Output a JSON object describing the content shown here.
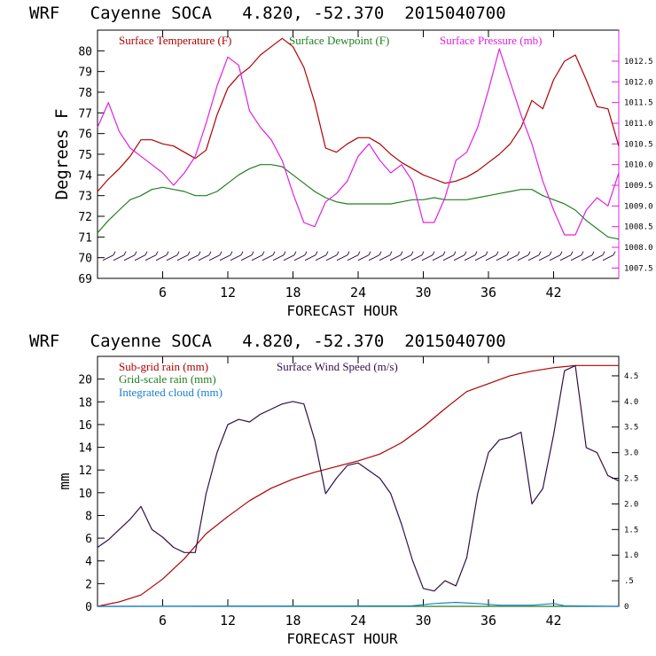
{
  "colors": {
    "temperature": "#b00000",
    "dewpoint": "#208020",
    "pressure": "#e020e0",
    "subgrid_rain": "#b00000",
    "gridscale_rain": "#208020",
    "cloud": "#1a7fd0",
    "wind": "#30104a",
    "axis": "#000000"
  },
  "chart_data": [
    {
      "type": "line",
      "title": "WRF   Cayenne SOCA   4.820, -52.370  2015040700",
      "xlabel": "FORECAST HOUR",
      "ylabel": "Degrees F",
      "xlim": [
        0,
        48
      ],
      "ylim": [
        69,
        81
      ],
      "y2lim": [
        1007.25,
        1013.25
      ],
      "xticks": [
        6,
        12,
        18,
        24,
        30,
        36,
        42
      ],
      "xtick_labels": [
        "6",
        "12",
        "18",
        "24",
        "30",
        "36",
        "42"
      ],
      "yticks": [
        69,
        70,
        71,
        72,
        73,
        74,
        75,
        76,
        77,
        78,
        79,
        80
      ],
      "ytick_labels": [
        "69",
        "70",
        "71",
        "72",
        "73",
        "74",
        "75",
        "76",
        "77",
        "78",
        "79",
        "80"
      ],
      "y2ticks": [
        1007.5,
        1008.0,
        1008.5,
        1009.0,
        1009.5,
        1010.0,
        1010.5,
        1011.0,
        1011.5,
        1012.0,
        1012.5
      ],
      "y2tick_labels": [
        "1007.5",
        "1008.0",
        "1008.5",
        "1009.0",
        "1009.5",
        "1010.0",
        "1010.5",
        "1011.0",
        "1011.5",
        "1012.0",
        "1012.5"
      ],
      "legend": [
        "Surface Temperature (F)",
        "Surface Dewpoint (F)",
        "Surface Pressure (mb)"
      ],
      "series": [
        {
          "name": "Surface Temperature (F)",
          "axis": "left",
          "color_key": "temperature",
          "x": [
            0,
            1,
            2,
            3,
            4,
            5,
            6,
            7,
            8,
            9,
            10,
            11,
            12,
            13,
            14,
            15,
            16,
            17,
            18,
            19,
            20,
            21,
            22,
            23,
            24,
            25,
            26,
            27,
            28,
            29,
            30,
            31,
            32,
            33,
            34,
            35,
            36,
            37,
            38,
            39,
            40,
            41,
            42,
            43,
            44,
            45,
            46,
            47,
            48
          ],
          "values": [
            73.2,
            73.8,
            74.3,
            74.9,
            75.7,
            75.7,
            75.5,
            75.4,
            75.1,
            74.8,
            75.2,
            76.9,
            78.2,
            78.8,
            79.2,
            79.8,
            80.2,
            80.6,
            80.2,
            79.2,
            77.5,
            75.3,
            75.1,
            75.5,
            75.8,
            75.8,
            75.5,
            75.0,
            74.6,
            74.3,
            74.0,
            73.8,
            73.6,
            73.7,
            73.9,
            74.2,
            74.6,
            75.0,
            75.5,
            76.3,
            77.6,
            77.2,
            78.6,
            79.5,
            79.8,
            78.6,
            77.3,
            77.2,
            75.4
          ]
        },
        {
          "name": "Surface Dewpoint (F)",
          "axis": "left",
          "color_key": "dewpoint",
          "x": [
            0,
            1,
            2,
            3,
            4,
            5,
            6,
            7,
            8,
            9,
            10,
            11,
            12,
            13,
            14,
            15,
            16,
            17,
            18,
            19,
            20,
            21,
            22,
            23,
            24,
            25,
            26,
            27,
            28,
            29,
            30,
            31,
            32,
            33,
            34,
            35,
            36,
            37,
            38,
            39,
            40,
            41,
            42,
            43,
            44,
            45,
            46,
            47,
            48
          ],
          "values": [
            71.2,
            71.8,
            72.3,
            72.8,
            73.0,
            73.3,
            73.4,
            73.3,
            73.2,
            73.0,
            73.0,
            73.2,
            73.6,
            74.0,
            74.3,
            74.5,
            74.5,
            74.4,
            74.0,
            73.6,
            73.2,
            72.9,
            72.7,
            72.6,
            72.6,
            72.6,
            72.6,
            72.6,
            72.7,
            72.8,
            72.8,
            72.9,
            72.8,
            72.8,
            72.8,
            72.9,
            73.0,
            73.1,
            73.2,
            73.3,
            73.3,
            73.0,
            72.8,
            72.6,
            72.3,
            71.8,
            71.4,
            71.0,
            70.9
          ]
        },
        {
          "name": "Surface Pressure (mb)",
          "axis": "right",
          "color_key": "pressure",
          "x": [
            0,
            1,
            2,
            3,
            4,
            5,
            6,
            7,
            8,
            9,
            10,
            11,
            12,
            13,
            14,
            15,
            16,
            17,
            18,
            19,
            20,
            21,
            22,
            23,
            24,
            25,
            26,
            27,
            28,
            29,
            30,
            31,
            32,
            33,
            34,
            35,
            36,
            37,
            38,
            39,
            40,
            41,
            42,
            43,
            44,
            45,
            46,
            47,
            48
          ],
          "values": [
            1010.9,
            1011.5,
            1010.8,
            1010.4,
            1010.2,
            1010.0,
            1009.8,
            1009.5,
            1009.8,
            1010.2,
            1011.0,
            1011.9,
            1012.6,
            1012.4,
            1011.3,
            1010.9,
            1010.6,
            1010.1,
            1009.3,
            1008.6,
            1008.5,
            1009.1,
            1009.3,
            1009.6,
            1010.2,
            1010.5,
            1010.1,
            1009.8,
            1010.0,
            1009.6,
            1008.6,
            1008.6,
            1009.2,
            1010.1,
            1010.3,
            1010.9,
            1011.8,
            1012.8,
            1012.0,
            1011.2,
            1010.5,
            1009.6,
            1008.9,
            1008.3,
            1008.3,
            1008.9,
            1009.2,
            1009.0,
            1009.8
          ]
        }
      ],
      "wind_barbs": {
        "description": "surface wind barbs along the 70 degree line",
        "count": 48
      }
    },
    {
      "type": "line",
      "title": "WRF   Cayenne SOCA   4.820, -52.370  2015040700",
      "xlabel": "FORECAST HOUR",
      "ylabel": "mm",
      "xlim": [
        0,
        48
      ],
      "ylim": [
        0,
        22
      ],
      "y2lim": [
        0,
        4.88
      ],
      "xticks": [
        6,
        12,
        18,
        24,
        30,
        36,
        42
      ],
      "xtick_labels": [
        "6",
        "12",
        "18",
        "24",
        "30",
        "36",
        "42"
      ],
      "yticks": [
        0,
        2,
        4,
        6,
        8,
        10,
        12,
        14,
        16,
        18,
        20
      ],
      "ytick_labels": [
        "0",
        "2",
        "4",
        "6",
        "8",
        "10",
        "12",
        "14",
        "16",
        "18",
        "20"
      ],
      "y2ticks": [
        0,
        0.5,
        1.0,
        1.5,
        2.0,
        2.5,
        3.0,
        3.5,
        4.0,
        4.5
      ],
      "y2tick_labels": [
        "0",
        ".5",
        "1.0",
        "1.5",
        "2.0",
        "2.5",
        "3.0",
        "3.5",
        "4.0",
        "4.5"
      ],
      "legend": [
        "Sub-grid rain (mm)",
        "Surface Wind Speed (m/s)",
        "Grid-scale rain (mm)",
        "Integrated cloud (mm)"
      ],
      "series": [
        {
          "name": "Sub-grid rain (mm)",
          "axis": "left",
          "color_key": "subgrid_rain",
          "x": [
            0,
            2,
            4,
            6,
            8,
            10,
            12,
            14,
            16,
            18,
            20,
            22,
            24,
            26,
            28,
            30,
            32,
            34,
            36,
            38,
            40,
            42,
            44,
            46,
            48
          ],
          "values": [
            0,
            0.4,
            1.0,
            2.4,
            4.2,
            6.4,
            7.9,
            9.3,
            10.4,
            11.2,
            11.8,
            12.3,
            12.8,
            13.4,
            14.4,
            15.8,
            17.4,
            18.9,
            19.6,
            20.3,
            20.7,
            21.0,
            21.2,
            21.2,
            21.2
          ]
        },
        {
          "name": "Surface Wind Speed (m/s)",
          "axis": "right",
          "color_key": "wind",
          "x": [
            0,
            1,
            2,
            3,
            4,
            5,
            6,
            7,
            8,
            9,
            10,
            11,
            12,
            13,
            14,
            15,
            16,
            17,
            18,
            19,
            20,
            21,
            22,
            23,
            24,
            25,
            26,
            27,
            28,
            29,
            30,
            31,
            32,
            33,
            34,
            35,
            36,
            37,
            38,
            39,
            40,
            41,
            42,
            43,
            44,
            45,
            46,
            47,
            48
          ],
          "values": [
            1.15,
            1.3,
            1.5,
            1.7,
            1.95,
            1.5,
            1.35,
            1.15,
            1.05,
            1.05,
            2.2,
            3.0,
            3.55,
            3.65,
            3.6,
            3.75,
            3.85,
            3.95,
            4.0,
            3.95,
            3.25,
            2.2,
            2.5,
            2.75,
            2.8,
            2.65,
            2.5,
            2.2,
            1.6,
            0.9,
            0.35,
            0.3,
            0.5,
            0.4,
            0.95,
            2.2,
            3.0,
            3.25,
            3.3,
            3.4,
            2.0,
            2.3,
            3.35,
            4.6,
            4.7,
            3.1,
            3.0,
            2.55,
            2.45
          ]
        },
        {
          "name": "Grid-scale rain (mm)",
          "axis": "left",
          "color_key": "gridscale_rain",
          "x": [
            0,
            48
          ],
          "values": [
            0,
            0
          ]
        },
        {
          "name": "Integrated cloud (mm)",
          "axis": "left",
          "color_key": "cloud",
          "x": [
            0,
            29,
            31,
            33,
            35,
            37,
            40,
            42,
            43,
            48
          ],
          "values": [
            0,
            0.05,
            0.25,
            0.35,
            0.25,
            0.1,
            0.1,
            0.25,
            0.05,
            0
          ]
        }
      ]
    }
  ]
}
